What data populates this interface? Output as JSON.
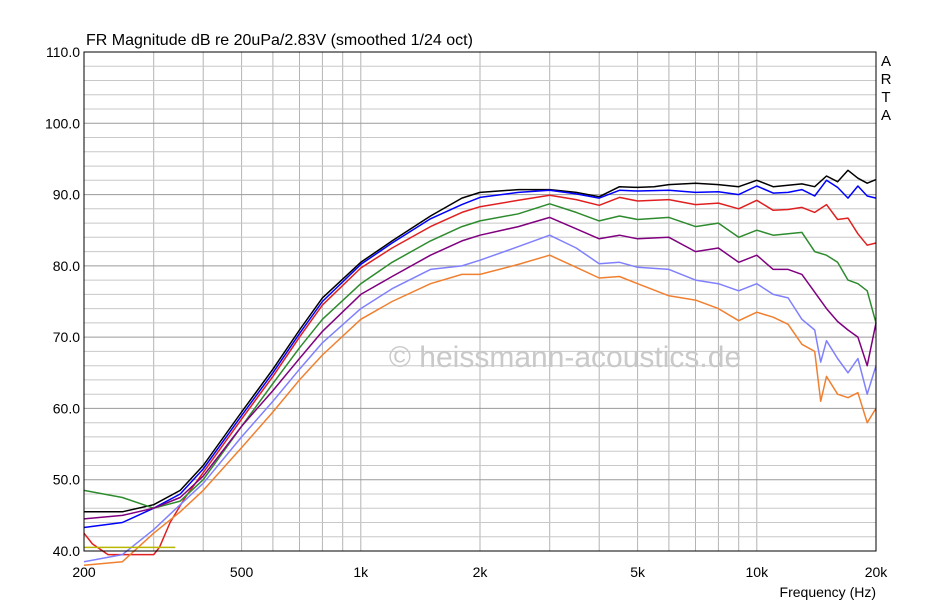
{
  "chart_data": {
    "type": "line",
    "title": "FR Magnitude dB re 20uPa/2.83V (smoothed 1/24 oct)",
    "xlabel": "Frequency (Hz)",
    "ylabel": "",
    "brand": [
      "A",
      "R",
      "T",
      "A"
    ],
    "watermark": "© heissmann-acoustics.de",
    "x_scale": "log",
    "xlim": [
      200,
      20000
    ],
    "ylim": [
      40,
      110
    ],
    "grid": true,
    "x_ticks": [
      {
        "value": 200,
        "label": "200"
      },
      {
        "value": 500,
        "label": "500"
      },
      {
        "value": 1000,
        "label": "1k"
      },
      {
        "value": 2000,
        "label": "2k"
      },
      {
        "value": 5000,
        "label": "5k"
      },
      {
        "value": 10000,
        "label": "10k"
      },
      {
        "value": 20000,
        "label": "20k"
      }
    ],
    "y_ticks": [
      {
        "value": 110,
        "label": "110.0"
      },
      {
        "value": 100,
        "label": "100.0"
      },
      {
        "value": 90,
        "label": "90.0"
      },
      {
        "value": 80,
        "label": "80.0"
      },
      {
        "value": 70,
        "label": "70.0"
      },
      {
        "value": 60,
        "label": "60.0"
      },
      {
        "value": 50,
        "label": "50.0"
      },
      {
        "value": 40,
        "label": "40.0"
      }
    ],
    "series": [
      {
        "color": "#000000",
        "points": [
          [
            200,
            45.5
          ],
          [
            250,
            45.5
          ],
          [
            300,
            46.5
          ],
          [
            350,
            48.5
          ],
          [
            400,
            52
          ],
          [
            500,
            59.5
          ],
          [
            600,
            65.5
          ],
          [
            700,
            71
          ],
          [
            800,
            75.5
          ],
          [
            1000,
            80.5
          ],
          [
            1200,
            83.5
          ],
          [
            1500,
            87
          ],
          [
            1800,
            89.5
          ],
          [
            2000,
            90.3
          ],
          [
            2500,
            90.7
          ],
          [
            3000,
            90.7
          ],
          [
            3500,
            90.3
          ],
          [
            4000,
            89.7
          ],
          [
            4500,
            91.1
          ],
          [
            5000,
            91
          ],
          [
            5500,
            91.1
          ],
          [
            6000,
            91.4
          ],
          [
            7000,
            91.6
          ],
          [
            8000,
            91.4
          ],
          [
            9000,
            91.1
          ],
          [
            10000,
            92
          ],
          [
            11000,
            91.1
          ],
          [
            12000,
            91.3
          ],
          [
            13000,
            91.5
          ],
          [
            14000,
            91.1
          ],
          [
            15000,
            92.6
          ],
          [
            16000,
            91.8
          ],
          [
            17000,
            93.4
          ],
          [
            18000,
            92.3
          ],
          [
            19000,
            91.6
          ],
          [
            20000,
            92.1
          ]
        ]
      },
      {
        "color": "#0000ff",
        "points": [
          [
            200,
            43.3
          ],
          [
            250,
            44
          ],
          [
            300,
            46
          ],
          [
            350,
            48
          ],
          [
            400,
            51.5
          ],
          [
            500,
            59
          ],
          [
            600,
            65
          ],
          [
            700,
            70.5
          ],
          [
            800,
            75
          ],
          [
            1000,
            80.2
          ],
          [
            1200,
            83.2
          ],
          [
            1500,
            86.6
          ],
          [
            1800,
            88.6
          ],
          [
            2000,
            89.6
          ],
          [
            2500,
            90.3
          ],
          [
            3000,
            90.6
          ],
          [
            3500,
            90.1
          ],
          [
            4000,
            89.5
          ],
          [
            4500,
            90.6
          ],
          [
            5000,
            90.5
          ],
          [
            6000,
            90.6
          ],
          [
            7000,
            90.3
          ],
          [
            8000,
            90.4
          ],
          [
            9000,
            90
          ],
          [
            10000,
            91.2
          ],
          [
            11000,
            90.2
          ],
          [
            12000,
            90.3
          ],
          [
            13000,
            90.7
          ],
          [
            14000,
            89.8
          ],
          [
            15000,
            92
          ],
          [
            16000,
            91
          ],
          [
            17000,
            89.5
          ],
          [
            18000,
            91.2
          ],
          [
            19000,
            89.8
          ],
          [
            20000,
            89.5
          ]
        ]
      },
      {
        "color": "#e02020",
        "points": [
          [
            200,
            42.5
          ],
          [
            210,
            41
          ],
          [
            230,
            39.5
          ],
          [
            300,
            39.5
          ],
          [
            310,
            40.5
          ],
          [
            330,
            44
          ],
          [
            360,
            47.5
          ],
          [
            400,
            51
          ],
          [
            500,
            58.5
          ],
          [
            600,
            64.5
          ],
          [
            700,
            70
          ],
          [
            800,
            74.5
          ],
          [
            1000,
            79.7
          ],
          [
            1200,
            82.5
          ],
          [
            1500,
            85.5
          ],
          [
            1800,
            87.5
          ],
          [
            2000,
            88.3
          ],
          [
            2500,
            89.2
          ],
          [
            3000,
            89.9
          ],
          [
            3500,
            89.3
          ],
          [
            4000,
            88.5
          ],
          [
            4500,
            89.6
          ],
          [
            5000,
            89.1
          ],
          [
            6000,
            89.3
          ],
          [
            7000,
            88.6
          ],
          [
            8000,
            88.8
          ],
          [
            9000,
            88
          ],
          [
            10000,
            89.2
          ],
          [
            11000,
            87.8
          ],
          [
            12000,
            87.9
          ],
          [
            13000,
            88.2
          ],
          [
            14000,
            87.5
          ],
          [
            15000,
            88.6
          ],
          [
            16000,
            86.5
          ],
          [
            17000,
            86.7
          ],
          [
            18000,
            84.5
          ],
          [
            19000,
            82.9
          ],
          [
            20000,
            83.2
          ]
        ]
      },
      {
        "color": "#2e8b2e",
        "points": [
          [
            200,
            48.5
          ],
          [
            250,
            47.5
          ],
          [
            300,
            46
          ],
          [
            350,
            47
          ],
          [
            400,
            50
          ],
          [
            500,
            57.5
          ],
          [
            600,
            63.5
          ],
          [
            700,
            68.5
          ],
          [
            800,
            72.5
          ],
          [
            1000,
            77.5
          ],
          [
            1200,
            80.5
          ],
          [
            1500,
            83.5
          ],
          [
            1800,
            85.5
          ],
          [
            2000,
            86.3
          ],
          [
            2500,
            87.3
          ],
          [
            3000,
            88.7
          ],
          [
            3500,
            87.5
          ],
          [
            4000,
            86.3
          ],
          [
            4500,
            87
          ],
          [
            5000,
            86.5
          ],
          [
            6000,
            86.8
          ],
          [
            7000,
            85.5
          ],
          [
            8000,
            86
          ],
          [
            9000,
            84
          ],
          [
            10000,
            85
          ],
          [
            11000,
            84.3
          ],
          [
            12000,
            84.5
          ],
          [
            13000,
            84.7
          ],
          [
            14000,
            82
          ],
          [
            15000,
            81.5
          ],
          [
            16000,
            80.5
          ],
          [
            17000,
            78
          ],
          [
            18000,
            77.5
          ],
          [
            19000,
            76.5
          ],
          [
            20000,
            72
          ]
        ]
      },
      {
        "color": "#800080",
        "points": [
          [
            200,
            44.5
          ],
          [
            250,
            45
          ],
          [
            300,
            46
          ],
          [
            350,
            47.5
          ],
          [
            400,
            50.5
          ],
          [
            500,
            57.5
          ],
          [
            600,
            62.5
          ],
          [
            700,
            67
          ],
          [
            800,
            70.8
          ],
          [
            1000,
            76
          ],
          [
            1200,
            78.5
          ],
          [
            1500,
            81.5
          ],
          [
            1800,
            83.5
          ],
          [
            2000,
            84.3
          ],
          [
            2500,
            85.5
          ],
          [
            3000,
            86.8
          ],
          [
            3500,
            85.2
          ],
          [
            4000,
            83.8
          ],
          [
            4500,
            84.3
          ],
          [
            5000,
            83.8
          ],
          [
            6000,
            84
          ],
          [
            7000,
            82
          ],
          [
            8000,
            82.5
          ],
          [
            9000,
            80.5
          ],
          [
            10000,
            81.5
          ],
          [
            11000,
            79.5
          ],
          [
            12000,
            79.5
          ],
          [
            13000,
            78.8
          ],
          [
            14000,
            76.3
          ],
          [
            15000,
            74
          ],
          [
            16000,
            72.2
          ],
          [
            17000,
            71
          ],
          [
            18000,
            70
          ],
          [
            19000,
            66
          ],
          [
            20000,
            72
          ]
        ]
      },
      {
        "color": "#8080ff",
        "points": [
          [
            200,
            38.5
          ],
          [
            250,
            39.5
          ],
          [
            300,
            43
          ],
          [
            350,
            46.5
          ],
          [
            400,
            49.5
          ],
          [
            500,
            56
          ],
          [
            600,
            61
          ],
          [
            700,
            65.5
          ],
          [
            800,
            69.2
          ],
          [
            1000,
            74
          ],
          [
            1200,
            76.8
          ],
          [
            1500,
            79.5
          ],
          [
            1800,
            80
          ],
          [
            2000,
            80.8
          ],
          [
            2500,
            82.7
          ],
          [
            3000,
            84.3
          ],
          [
            3500,
            82.5
          ],
          [
            4000,
            80.3
          ],
          [
            4500,
            80.5
          ],
          [
            5000,
            79.8
          ],
          [
            6000,
            79.5
          ],
          [
            7000,
            78
          ],
          [
            8000,
            77.5
          ],
          [
            9000,
            76.5
          ],
          [
            10000,
            77.5
          ],
          [
            11000,
            76
          ],
          [
            12000,
            75.5
          ],
          [
            13000,
            72.5
          ],
          [
            14000,
            71
          ],
          [
            14500,
            66.5
          ],
          [
            15000,
            69.5
          ],
          [
            16000,
            67
          ],
          [
            17000,
            65
          ],
          [
            18000,
            67
          ],
          [
            19000,
            62
          ],
          [
            20000,
            66
          ]
        ]
      },
      {
        "color": "#f08030",
        "points": [
          [
            200,
            38
          ],
          [
            250,
            38.5
          ],
          [
            300,
            42.5
          ],
          [
            350,
            45.5
          ],
          [
            400,
            48.5
          ],
          [
            500,
            54.5
          ],
          [
            600,
            59.5
          ],
          [
            700,
            64
          ],
          [
            800,
            67.5
          ],
          [
            1000,
            72.5
          ],
          [
            1200,
            75
          ],
          [
            1500,
            77.5
          ],
          [
            1800,
            78.8
          ],
          [
            2000,
            78.8
          ],
          [
            2500,
            80.2
          ],
          [
            3000,
            81.5
          ],
          [
            3500,
            79.8
          ],
          [
            4000,
            78.3
          ],
          [
            4500,
            78.5
          ],
          [
            5000,
            77.5
          ],
          [
            6000,
            75.8
          ],
          [
            7000,
            75.2
          ],
          [
            8000,
            74
          ],
          [
            9000,
            72.3
          ],
          [
            10000,
            73.5
          ],
          [
            11000,
            72.8
          ],
          [
            12000,
            71.8
          ],
          [
            13000,
            69
          ],
          [
            14000,
            68
          ],
          [
            14500,
            61
          ],
          [
            15000,
            64.5
          ],
          [
            16000,
            62
          ],
          [
            17000,
            61.5
          ],
          [
            18000,
            62.2
          ],
          [
            19000,
            58
          ],
          [
            20000,
            60
          ]
        ]
      },
      {
        "color": "#b8b800",
        "points": [
          [
            200,
            40.5
          ],
          [
            340,
            40.5
          ]
        ]
      }
    ]
  }
}
